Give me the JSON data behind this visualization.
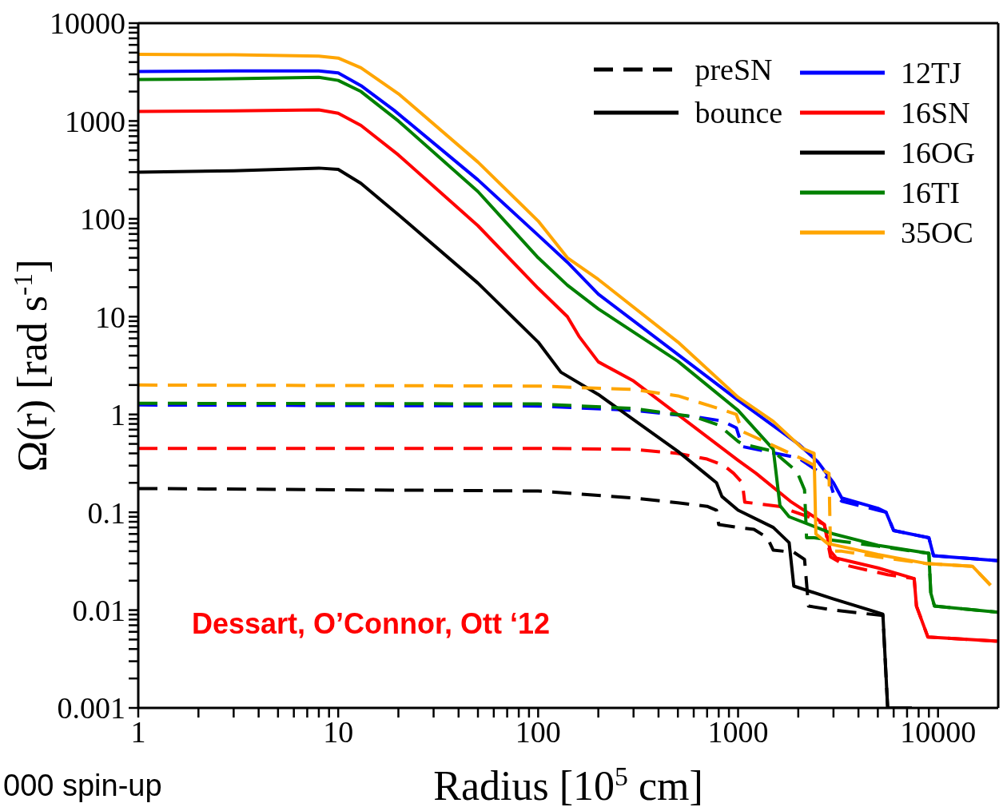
{
  "chart_data": {
    "type": "line",
    "xlabel": "Radius [10$^{5}$ cm]",
    "ylabel": "Ω(r) [rad s$^{-1}$]",
    "log": "xy",
    "legend": "top right",
    "xlim": [
      1,
      20000
    ],
    "ylim": [
      0.001,
      10000
    ],
    "xticks": [
      1,
      {
        "value": 2,
        "label": null
      },
      {
        "value": 3,
        "label": null
      },
      {
        "value": 4,
        "label": null
      },
      {
        "value": 5,
        "label": null
      },
      {
        "value": 6,
        "label": null
      },
      {
        "value": 7,
        "label": null
      },
      {
        "value": 8,
        "label": null
      },
      {
        "value": 9,
        "label": null
      },
      10,
      {
        "value": 20,
        "label": null
      },
      {
        "value": 30,
        "label": null
      },
      {
        "value": 40,
        "label": null
      },
      {
        "value": 50,
        "label": null
      },
      {
        "value": 60,
        "label": null
      },
      {
        "value": 70,
        "label": null
      },
      {
        "value": 80,
        "label": null
      },
      {
        "value": 90,
        "label": null
      },
      100,
      {
        "value": 200,
        "label": null
      },
      {
        "value": 300,
        "label": null
      },
      {
        "value": 400,
        "label": null
      },
      {
        "value": 500,
        "label": null
      },
      {
        "value": 600,
        "label": null
      },
      {
        "value": 700,
        "label": null
      },
      {
        "value": 800,
        "label": null
      },
      {
        "value": 900,
        "label": null
      },
      1000,
      {
        "value": 2000,
        "label": null
      },
      {
        "value": 3000,
        "label": null
      },
      {
        "value": 4000,
        "label": null
      },
      {
        "value": 5000,
        "label": null
      },
      {
        "value": 6000,
        "label": null
      },
      {
        "value": 7000,
        "label": null
      },
      {
        "value": 8000,
        "label": null
      },
      {
        "value": 9000,
        "label": null
      },
      10000
    ],
    "yticks": [
      0.001,
      {
        "value": 0.002,
        "label": null
      },
      {
        "value": 0.003,
        "label": null
      },
      {
        "value": 0.004,
        "label": null
      },
      {
        "value": 0.005,
        "label": null
      },
      {
        "value": 0.006,
        "label": null
      },
      {
        "value": 0.007,
        "label": null
      },
      {
        "value": 0.008,
        "label": null
      },
      {
        "value": 0.009,
        "label": null
      },
      0.01,
      {
        "value": 0.02,
        "label": null
      },
      {
        "value": 0.03,
        "label": null
      },
      {
        "value": 0.04,
        "label": null
      },
      {
        "value": 0.05,
        "label": null
      },
      {
        "value": 0.06,
        "label": null
      },
      {
        "value": 0.07,
        "label": null
      },
      {
        "value": 0.08,
        "label": null
      },
      {
        "value": 0.09,
        "label": null
      },
      0.1,
      {
        "value": 0.2,
        "label": null
      },
      {
        "value": 0.3,
        "label": null
      },
      {
        "value": 0.4,
        "label": null
      },
      {
        "value": 0.5,
        "label": null
      },
      {
        "value": 0.6,
        "label": null
      },
      {
        "value": 0.7,
        "label": null
      },
      {
        "value": 0.8,
        "label": null
      },
      {
        "value": 0.9,
        "label": null
      },
      1,
      {
        "value": 2,
        "label": null
      },
      {
        "value": 3,
        "label": null
      },
      {
        "value": 4,
        "label": null
      },
      {
        "value": 5,
        "label": null
      },
      {
        "value": 6,
        "label": null
      },
      {
        "value": 7,
        "label": null
      },
      {
        "value": 8,
        "label": null
      },
      {
        "value": 9,
        "label": null
      },
      10,
      {
        "value": 20,
        "label": null
      },
      {
        "value": 30,
        "label": null
      },
      {
        "value": 40,
        "label": null
      },
      {
        "value": 50,
        "label": null
      },
      {
        "value": 60,
        "label": null
      },
      {
        "value": 70,
        "label": null
      },
      {
        "value": 80,
        "label": null
      },
      {
        "value": 90,
        "label": null
      },
      100,
      {
        "value": 200,
        "label": null
      },
      {
        "value": 300,
        "label": null
      },
      {
        "value": 400,
        "label": null
      },
      {
        "value": 500,
        "label": null
      },
      {
        "value": 600,
        "label": null
      },
      {
        "value": 700,
        "label": null
      },
      {
        "value": 800,
        "label": null
      },
      {
        "value": 900,
        "label": null
      },
      1000,
      {
        "value": 2000,
        "label": null
      },
      {
        "value": 3000,
        "label": null
      },
      {
        "value": 4000,
        "label": null
      },
      {
        "value": 5000,
        "label": null
      },
      {
        "value": 6000,
        "label": null
      },
      {
        "value": 7000,
        "label": null
      },
      {
        "value": 8000,
        "label": null
      },
      {
        "value": 9000,
        "label": null
      },
      10000
    ],
    "annotations": [
      "Dessart, O’Connor, Ott ‘12",
      "000 spin-up"
    ],
    "series": [
      {
        "name": "preSN",
        "color": "#000000",
        "line_style": "dashed"
      },
      {
        "name": "bounce",
        "color": "#000000",
        "line_style": "solid"
      },
      {
        "name": "12TJ",
        "color": "#0000ff",
        "line_style": "solid",
        "x": [
          1,
          3,
          8,
          10,
          13,
          19,
          50,
          100,
          140,
          200,
          500,
          1000,
          2000,
          2500,
          3000,
          3300,
          5000,
          5500,
          6000,
          9000,
          9500,
          20000
        ],
        "values": [
          3200,
          3250,
          3250,
          3100,
          2300,
          1290,
          250,
          68,
          36,
          17,
          4.1,
          1.4,
          0.5,
          0.33,
          0.2,
          0.14,
          0.11,
          0.1,
          0.065,
          0.055,
          0.036,
          0.032
        ]
      },
      {
        "color": "#0000ff",
        "line_style": "dashed",
        "x": [
          1,
          100,
          300,
          600,
          830,
          980,
          1050,
          2000,
          2850,
          3000,
          3300,
          5000,
          5500,
          6000,
          9000,
          9500,
          20000
        ],
        "values": [
          1.25,
          1.22,
          1.1,
          0.95,
          0.86,
          0.73,
          0.47,
          0.36,
          0.22,
          0.155,
          0.13,
          0.105,
          0.1,
          0.065,
          0.055,
          0.036,
          0.032
        ]
      },
      {
        "name": "16SN",
        "color": "#ff0000",
        "line_style": "solid",
        "x": [
          1,
          3,
          8,
          10,
          13,
          20,
          50,
          100,
          140,
          160,
          200,
          300,
          1000,
          1230,
          1850,
          2400,
          2700,
          2900,
          3100,
          5000,
          7600,
          7800,
          8900,
          20000
        ],
        "values": [
          1250,
          1270,
          1300,
          1200,
          900,
          450,
          85,
          19.5,
          10,
          6.3,
          3.45,
          2.2,
          0.34,
          0.25,
          0.127,
          0.09,
          0.075,
          0.04,
          0.034,
          0.027,
          0.021,
          0.011,
          0.0053,
          0.0048
        ]
      },
      {
        "color": "#ff0000",
        "line_style": "dashed",
        "x": [
          1,
          100,
          300,
          500,
          700,
          850,
          950,
          1050,
          1080,
          1600,
          2250,
          2700,
          2900,
          3400,
          5600,
          7600,
          7800,
          8900,
          20000
        ],
        "values": [
          0.45,
          0.45,
          0.44,
          0.4,
          0.35,
          0.3,
          0.25,
          0.2,
          0.127,
          0.115,
          0.09,
          0.075,
          0.035,
          0.029,
          0.023,
          0.021,
          0.011,
          0.0053,
          0.0048
        ]
      },
      {
        "name": "16OG",
        "color": "#000000",
        "line_style": "solid",
        "x": [
          1,
          3,
          8,
          10,
          13,
          20,
          50,
          100,
          130,
          200,
          500,
          700,
          780,
          830,
          1000,
          1500,
          1800,
          1900,
          3000,
          5300,
          5600,
          7400
        ],
        "values": [
          300,
          310,
          330,
          320,
          230,
          110,
          22,
          5.5,
          2.7,
          1.6,
          0.42,
          0.24,
          0.2,
          0.145,
          0.105,
          0.07,
          0.049,
          0.0176,
          0.013,
          0.0091,
          0.001,
          0.001
        ]
      },
      {
        "color": "#000000",
        "line_style": "dashed",
        "x": [
          1,
          100,
          300,
          500,
          700,
          780,
          800,
          1000,
          1200,
          1400,
          1500,
          1900,
          2150,
          2250,
          3000,
          5300,
          5600,
          7400
        ],
        "values": [
          0.175,
          0.165,
          0.14,
          0.125,
          0.115,
          0.105,
          0.075,
          0.07,
          0.067,
          0.055,
          0.041,
          0.039,
          0.033,
          0.011,
          0.01,
          0.0088,
          0.001,
          0.001
        ]
      },
      {
        "name": "16TI",
        "color": "#008000",
        "line_style": "solid",
        "x": [
          1,
          3,
          8,
          10,
          13,
          20,
          50,
          100,
          140,
          200,
          500,
          1000,
          1500,
          1620,
          1800,
          3000,
          5000,
          9000,
          9200,
          9600,
          20000
        ],
        "values": [
          2650,
          2700,
          2800,
          2600,
          2000,
          1000,
          190,
          40,
          21,
          12,
          3.5,
          1.1,
          0.44,
          0.117,
          0.09,
          0.06,
          0.046,
          0.038,
          0.015,
          0.011,
          0.0095
        ]
      },
      {
        "color": "#008000",
        "line_style": "dashed",
        "x": [
          1,
          100,
          300,
          600,
          800,
          1000,
          1050,
          1500,
          1970,
          2150,
          2200,
          2400,
          5000,
          9000,
          9200,
          9600,
          20000
        ],
        "values": [
          1.3,
          1.28,
          1.15,
          0.95,
          0.78,
          0.53,
          0.5,
          0.42,
          0.26,
          0.17,
          0.055,
          0.055,
          0.045,
          0.038,
          0.015,
          0.011,
          0.0095
        ]
      },
      {
        "name": "35OC",
        "color": "#ffa500",
        "line_style": "solid",
        "x": [
          1,
          3,
          8,
          10,
          13,
          20,
          50,
          100,
          140,
          200,
          500,
          1000,
          1500,
          2100,
          2400,
          2450,
          2800,
          5000,
          8700,
          14900,
          18300
        ],
        "values": [
          4800,
          4750,
          4600,
          4400,
          3500,
          1900,
          380,
          95,
          40,
          24,
          5.5,
          1.5,
          0.85,
          0.45,
          0.4,
          0.06,
          0.048,
          0.037,
          0.03,
          0.028,
          0.018
        ]
      },
      {
        "color": "#ffa500",
        "line_style": "dashed",
        "x": [
          1,
          100,
          300,
          500,
          800,
          980,
          1050,
          1300,
          2100,
          2850,
          2900,
          3300,
          5000,
          8700,
          14900,
          18300
        ],
        "values": [
          2,
          1.95,
          1.8,
          1.55,
          1.15,
          1.0,
          0.67,
          0.55,
          0.35,
          0.25,
          0.04,
          0.04,
          0.035,
          0.03,
          0.028,
          0.018
        ]
      }
    ]
  }
}
